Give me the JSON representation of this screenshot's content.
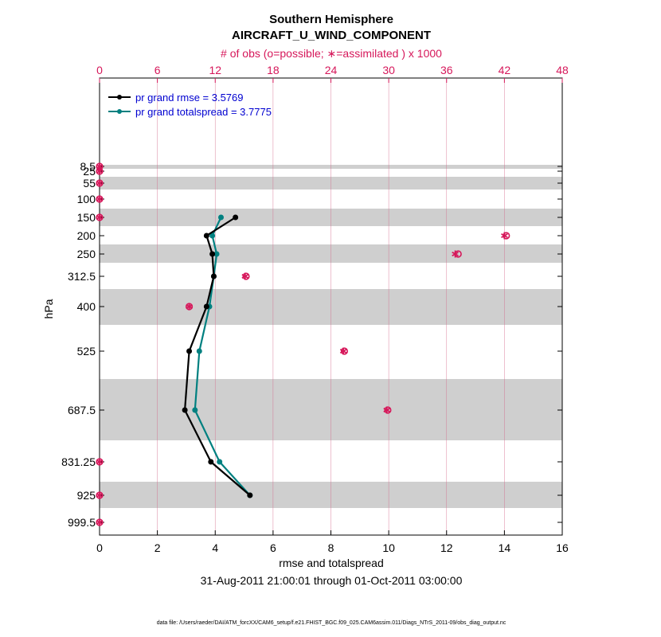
{
  "chart_data": {
    "type": "line",
    "title": "Southern Hemisphere",
    "subtitle": "AIRCRAFT_U_WIND_COMPONENT",
    "top_axis_label": "# of obs (o=possible; ∗=assimilated ) x 1000",
    "xlabel": "rmse and totalspread",
    "ylabel": "hPa",
    "date_range": "31-Aug-2011 21:00:01 through 01-Oct-2011 03:00:00",
    "footnote": "data file: /Users/raeder/DAI/ATM_forcXX/CAM6_setup/f.e21.FHIST_BGC.f09_025.CAM6assim.011/Diags_NTrS_2011-09/obs_diag_output.nc",
    "xlim": [
      0,
      16
    ],
    "x_ticks": [
      "0",
      "2",
      "4",
      "6",
      "8",
      "10",
      "12",
      "14",
      "16"
    ],
    "top_xlim": [
      0,
      48
    ],
    "top_ticks": [
      "0",
      "6",
      "12",
      "18",
      "24",
      "30",
      "36",
      "42",
      "48"
    ],
    "y_levels": [
      "8.5",
      "25",
      "55",
      "100",
      "150",
      "200",
      "250",
      "312.5",
      "400",
      "525",
      "687.5",
      "831.25",
      "925",
      "999.5"
    ],
    "legend": [
      {
        "label": "pr grand rmse = 3.5769",
        "color": "#000000"
      },
      {
        "label": "pr grand totalspread = 3.7775",
        "color": "#008080"
      }
    ],
    "series": [
      {
        "name": "rmse",
        "color": "#000000",
        "points": [
          {
            "level": "150",
            "value": 4.7
          },
          {
            "level": "200",
            "value": 3.7
          },
          {
            "level": "250",
            "value": 3.9
          },
          {
            "level": "312.5",
            "value": 3.95
          },
          {
            "level": "400",
            "value": 3.7
          },
          {
            "level": "525",
            "value": 3.1
          },
          {
            "level": "687.5",
            "value": 2.95
          },
          {
            "level": "831.25",
            "value": 3.85
          },
          {
            "level": "925",
            "value": 5.2
          }
        ]
      },
      {
        "name": "totalspread",
        "color": "#008080",
        "points": [
          {
            "level": "150",
            "value": 4.2
          },
          {
            "level": "200",
            "value": 3.9
          },
          {
            "level": "250",
            "value": 4.05
          },
          {
            "level": "312.5",
            "value": 3.95
          },
          {
            "level": "400",
            "value": 3.8
          },
          {
            "level": "525",
            "value": 3.45
          },
          {
            "level": "687.5",
            "value": 3.3
          },
          {
            "level": "831.25",
            "value": 4.15
          },
          {
            "level": "925",
            "value": 5.2
          }
        ]
      }
    ],
    "obs_counts": {
      "unit": "x 1000",
      "color": "#d6175a",
      "points": [
        {
          "level": "8.5",
          "possible": 0.0,
          "assimilated": 0.0
        },
        {
          "level": "25",
          "possible": 0.0,
          "assimilated": 0.0
        },
        {
          "level": "55",
          "possible": 0.0,
          "assimilated": 0.0
        },
        {
          "level": "100",
          "possible": 0.0,
          "assimilated": 0.0
        },
        {
          "level": "150",
          "possible": 0.0,
          "assimilated": 0.0
        },
        {
          "level": "200",
          "possible": 42.2,
          "assimilated": 42.0
        },
        {
          "level": "250",
          "possible": 37.2,
          "assimilated": 36.9
        },
        {
          "level": "312.5",
          "possible": 15.2,
          "assimilated": 15.1
        },
        {
          "level": "400",
          "possible": 9.3,
          "assimilated": 9.3
        },
        {
          "level": "525",
          "possible": 25.4,
          "assimilated": 25.3
        },
        {
          "level": "687.5",
          "possible": 29.9,
          "assimilated": 29.8
        },
        {
          "level": "831.25",
          "possible": 0.0,
          "assimilated": 0.0
        },
        {
          "level": "925",
          "possible": 0.0,
          "assimilated": 0.0
        },
        {
          "level": "999.5",
          "possible": 0.0,
          "assimilated": 0.0
        }
      ]
    },
    "colors": {
      "accent": "#d6175a",
      "rmse": "#000000",
      "spread": "#008080",
      "band": "#cfcfcf",
      "legend_text": "#0000d0"
    }
  }
}
